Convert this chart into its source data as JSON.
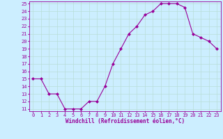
{
  "x": [
    0,
    1,
    2,
    3,
    4,
    5,
    6,
    7,
    8,
    9,
    10,
    11,
    12,
    13,
    14,
    15,
    16,
    17,
    18,
    19,
    20,
    21,
    22,
    23
  ],
  "y": [
    15,
    15,
    13,
    13,
    11,
    11,
    11,
    12,
    12,
    14,
    17,
    19,
    21,
    22,
    23.5,
    24,
    25,
    25,
    25,
    24.5,
    21,
    20.5,
    20,
    19
  ],
  "line_color": "#990099",
  "marker": "D",
  "marker_size": 2,
  "bg_color": "#cceeff",
  "grid_color": "#aaddcc",
  "xlabel": "Windchill (Refroidissement éolien,°C)",
  "xlabel_color": "#990099",
  "tick_color": "#990099",
  "ylim": [
    11,
    25
  ],
  "xlim": [
    -0.5,
    23.5
  ],
  "yticks": [
    11,
    12,
    13,
    14,
    15,
    16,
    17,
    18,
    19,
    20,
    21,
    22,
    23,
    24,
    25
  ],
  "xticks": [
    0,
    1,
    2,
    3,
    4,
    5,
    6,
    7,
    8,
    9,
    10,
    11,
    12,
    13,
    14,
    15,
    16,
    17,
    18,
    19,
    20,
    21,
    22,
    23
  ],
  "font_family": "monospace",
  "tick_fontsize": 5,
  "xlabel_fontsize": 5.5,
  "linewidth": 0.8
}
